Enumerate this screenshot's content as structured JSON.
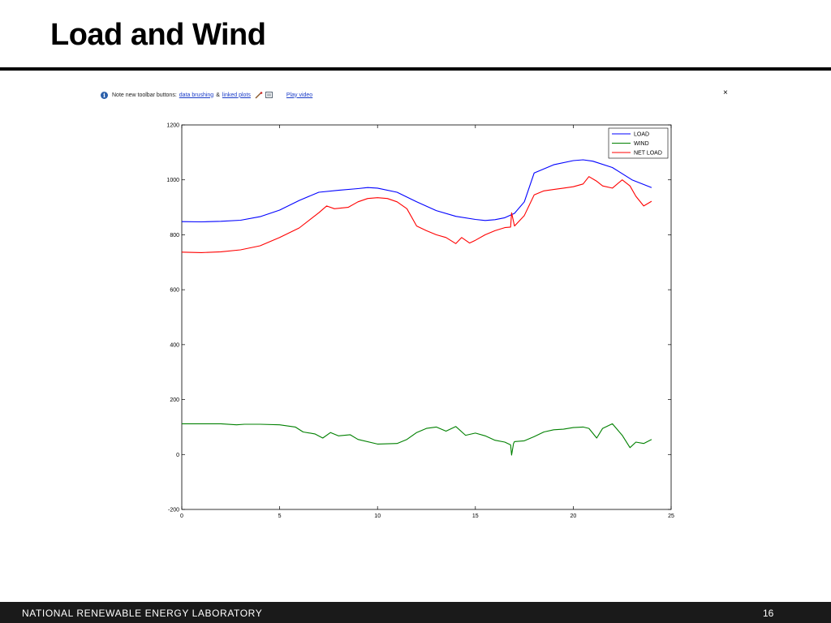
{
  "slide": {
    "title": "Load and Wind",
    "footer_lab": "NATIONAL RENEWABLE ENERGY LABORATORY",
    "page_number": "16"
  },
  "toolbar_note": {
    "prefix": "Note new toolbar buttons:",
    "link1": "data brushing",
    "amp": "&",
    "link2": "linked plots",
    "link3": "Play video",
    "close": "×",
    "info_icon": "info-icon",
    "brush_icon": "brush-icon",
    "link_icon": "linked-plot-icon"
  },
  "chart_data": {
    "type": "line",
    "title": "",
    "xlabel": "",
    "ylabel": "",
    "xlim": [
      0,
      25
    ],
    "ylim": [
      -200,
      1200
    ],
    "xticks": [
      0,
      5,
      10,
      15,
      20,
      25
    ],
    "yticks": [
      -200,
      0,
      200,
      400,
      600,
      800,
      1000,
      1200
    ],
    "grid": false,
    "legend_position": "top-right",
    "series": [
      {
        "name": "LOAD",
        "color": "#0000ff",
        "x": [
          0,
          1,
          2,
          3,
          4,
          5,
          6,
          7,
          8,
          9,
          9.5,
          10,
          11,
          12,
          13,
          14,
          15,
          15.5,
          16,
          16.5,
          17,
          17.5,
          18,
          19,
          20,
          20.5,
          21,
          22,
          23,
          24
        ],
        "y": [
          848,
          847,
          849,
          853,
          866,
          890,
          925,
          955,
          962,
          968,
          972,
          970,
          955,
          920,
          888,
          867,
          856,
          852,
          855,
          862,
          878,
          920,
          1025,
          1055,
          1070,
          1073,
          1068,
          1045,
          1000,
          972
        ]
      },
      {
        "name": "WIND",
        "color": "#008000",
        "x": [
          0,
          1,
          2,
          2.8,
          3.2,
          4,
          5,
          5.8,
          6.2,
          6.8,
          7.2,
          7.6,
          8,
          8.6,
          9,
          10,
          11,
          11.5,
          12,
          12.5,
          13,
          13.5,
          14,
          14.5,
          15,
          15.5,
          16,
          16.5,
          16.8,
          16.85,
          16.95,
          17,
          17.5,
          18,
          18.5,
          19,
          19.5,
          20,
          20.5,
          20.8,
          21.2,
          21.5,
          22,
          22.5,
          22.9,
          23.2,
          23.6,
          24
        ],
        "y": [
          112,
          112,
          112,
          108,
          110,
          110,
          108,
          100,
          82,
          75,
          60,
          80,
          68,
          72,
          55,
          38,
          40,
          55,
          80,
          95,
          100,
          85,
          102,
          70,
          78,
          68,
          52,
          45,
          35,
          -2,
          40,
          47,
          50,
          65,
          82,
          90,
          92,
          98,
          100,
          95,
          60,
          95,
          112,
          70,
          25,
          45,
          40,
          55
        ]
      },
      {
        "name": "NET LOAD",
        "color": "#ff0000",
        "x": [
          0,
          1,
          2,
          3,
          4,
          5,
          6,
          7,
          7.4,
          7.8,
          8.5,
          9,
          9.5,
          10,
          10.5,
          11,
          11.5,
          12,
          12.5,
          13,
          13.5,
          14,
          14.3,
          14.7,
          15,
          15.5,
          16,
          16.5,
          16.8,
          16.85,
          17,
          17.5,
          18,
          18.5,
          19,
          19.5,
          20,
          20.5,
          20.8,
          21.2,
          21.5,
          22,
          22.5,
          22.9,
          23.2,
          23.6,
          24
        ],
        "y": [
          737,
          735,
          738,
          745,
          760,
          790,
          825,
          880,
          905,
          895,
          900,
          920,
          932,
          935,
          932,
          920,
          895,
          832,
          815,
          800,
          790,
          768,
          790,
          770,
          780,
          800,
          815,
          826,
          828,
          880,
          832,
          870,
          945,
          960,
          965,
          970,
          975,
          985,
          1012,
          995,
          978,
          970,
          1000,
          978,
          940,
          905,
          922
        ]
      }
    ]
  }
}
